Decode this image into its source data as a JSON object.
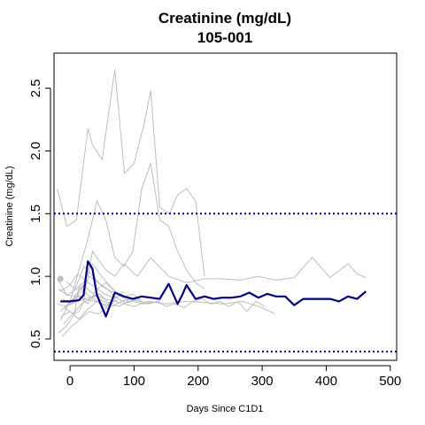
{
  "chart_data": {
    "type": "line",
    "title": "Creatinine (mg/dL)",
    "subtitle": "105-001",
    "xlabel": "Days Since C1D1",
    "ylabel": "Creatinine (mg/dL)",
    "xlim": [
      -25,
      510
    ],
    "ylim": [
      0.33,
      2.78
    ],
    "xticks": [
      0,
      100,
      200,
      300,
      400,
      500
    ],
    "yticks": [
      0.5,
      1.0,
      1.5,
      2.0,
      2.5
    ],
    "xtick_labels": [
      "0",
      "100",
      "200",
      "300",
      "400",
      "500"
    ],
    "ytick_labels": [
      "0.5",
      "1.0",
      "1.5",
      "2.0",
      "2.5"
    ],
    "reference_lines": [
      1.5,
      0.4
    ],
    "reference_line_color": "#00008b",
    "highlight_color": "#000080",
    "background_color": "#bebebe",
    "grid": false,
    "highlight_series": {
      "x": [
        -15,
        0,
        14,
        21,
        28,
        35,
        42,
        56,
        70,
        84,
        98,
        112,
        126,
        140,
        154,
        168,
        175,
        182,
        196,
        210,
        224,
        238,
        252,
        266,
        280,
        294,
        308,
        322,
        336,
        350,
        364,
        378,
        392,
        406,
        420,
        434,
        448,
        462
      ],
      "y": [
        0.8,
        0.8,
        0.81,
        0.85,
        1.12,
        1.06,
        0.85,
        0.68,
        0.87,
        0.84,
        0.82,
        0.84,
        0.83,
        0.82,
        0.94,
        0.78,
        0.85,
        0.93,
        0.82,
        0.84,
        0.82,
        0.83,
        0.83,
        0.84,
        0.87,
        0.83,
        0.86,
        0.84,
        0.84,
        0.77,
        0.82,
        0.82,
        0.82,
        0.82,
        0.8,
        0.84,
        0.82,
        0.88
      ]
    },
    "background_series": [
      {
        "x": [
          -20,
          -5,
          10,
          28,
          35,
          50,
          70,
          85,
          100,
          115,
          126,
          140,
          155,
          168,
          182,
          196,
          210
        ],
        "y": [
          1.7,
          1.4,
          1.45,
          2.18,
          2.05,
          1.93,
          2.65,
          1.82,
          1.9,
          2.2,
          2.48,
          1.55,
          1.5,
          1.65,
          1.7,
          1.6,
          1.0
        ]
      },
      {
        "x": [
          -15,
          0,
          14,
          28,
          42,
          56,
          70,
          84,
          98,
          112,
          126,
          140,
          154,
          168,
          182,
          196,
          210
        ],
        "y": [
          0.65,
          0.8,
          1.05,
          1.3,
          1.6,
          1.45,
          1.15,
          1.08,
          1.2,
          1.7,
          1.9,
          1.45,
          1.4,
          1.2,
          1.05,
          0.95,
          0.9
        ]
      },
      {
        "x": [
          -10,
          5,
          14,
          21,
          35,
          56,
          70,
          84,
          105,
          126,
          154,
          182,
          210,
          238,
          266,
          294,
          322,
          350,
          378,
          406,
          434,
          448,
          462
        ],
        "y": [
          0.75,
          0.7,
          0.72,
          0.8,
          1.2,
          1.05,
          1.0,
          1.1,
          1.0,
          1.15,
          1.0,
          0.95,
          0.98,
          0.98,
          0.97,
          1.0,
          0.97,
          0.99,
          1.15,
          0.99,
          1.1,
          1.02,
          0.99
        ]
      },
      {
        "x": [
          -20,
          -5,
          10,
          21,
          35,
          49,
          63,
          77,
          91,
          105,
          119,
          140
        ],
        "y": [
          0.98,
          0.85,
          0.9,
          0.95,
          1.1,
          1.0,
          0.92,
          0.85,
          0.8,
          0.82,
          0.78,
          0.8
        ]
      },
      {
        "x": [
          -18,
          -6,
          7,
          14,
          28,
          42,
          56,
          70,
          84
        ],
        "y": [
          0.55,
          0.6,
          0.7,
          0.92,
          0.85,
          0.8,
          0.75,
          0.82,
          0.88
        ]
      },
      {
        "x": [
          -15,
          0,
          14,
          28,
          42,
          56,
          70,
          84,
          98,
          112
        ],
        "y": [
          0.72,
          0.8,
          0.85,
          0.78,
          0.9,
          0.95,
          0.88,
          0.84,
          0.86,
          0.8
        ]
      },
      {
        "x": [
          -12,
          2,
          16,
          30,
          44,
          58,
          72,
          86,
          100,
          114,
          128
        ],
        "y": [
          0.82,
          0.78,
          0.88,
          1.0,
          0.95,
          0.9,
          0.83,
          0.79,
          0.8,
          0.78,
          0.8
        ]
      },
      {
        "x": [
          -10,
          4,
          18,
          32,
          46,
          60,
          74
        ],
        "y": [
          0.62,
          0.7,
          0.78,
          0.82,
          0.86,
          0.79,
          0.81
        ]
      },
      {
        "x": [
          -20,
          -5,
          10,
          25,
          40,
          55,
          70,
          85,
          100,
          120,
          150,
          180,
          210,
          240,
          270,
          300,
          320
        ],
        "y": [
          0.78,
          0.76,
          0.8,
          0.82,
          0.85,
          0.82,
          0.8,
          0.78,
          0.76,
          0.8,
          0.78,
          0.8,
          0.79,
          0.78,
          0.8,
          0.75,
          0.7
        ]
      },
      {
        "x": [
          -16,
          -2,
          12,
          26,
          40,
          54,
          68,
          82,
          96
        ],
        "y": [
          0.88,
          0.92,
          1.02,
          0.96,
          0.91,
          0.86,
          0.83,
          0.85,
          0.82
        ]
      },
      {
        "x": [
          -14,
          0,
          14,
          28,
          42,
          56,
          70
        ],
        "y": [
          0.68,
          0.72,
          0.66,
          0.74,
          0.8,
          0.77,
          0.79
        ]
      },
      {
        "x": [
          -8,
          6,
          20,
          34,
          48,
          62,
          76,
          90
        ],
        "y": [
          0.74,
          0.83,
          0.93,
          0.87,
          0.81,
          0.78,
          0.76,
          0.8
        ]
      },
      {
        "x": [
          -18,
          -4,
          10,
          24,
          38,
          52,
          66,
          80,
          94,
          108,
          122,
          136,
          150,
          164,
          178,
          192,
          206,
          220,
          234,
          248,
          262,
          276,
          290,
          304
        ],
        "y": [
          0.9,
          0.85,
          0.84,
          0.82,
          0.8,
          0.78,
          0.76,
          0.8,
          0.82,
          0.8,
          0.78,
          0.8,
          0.76,
          0.78,
          0.75,
          0.8,
          0.82,
          0.78,
          0.8,
          0.76,
          0.8,
          0.72,
          0.8,
          0.76
        ]
      },
      {
        "x": [
          -12,
          2,
          16,
          30,
          44,
          58
        ],
        "y": [
          0.52,
          0.6,
          0.66,
          0.72,
          0.7,
          0.75
        ]
      },
      {
        "x": [
          -6,
          8,
          22,
          36,
          50,
          64,
          78
        ],
        "y": [
          0.96,
          0.9,
          1.08,
          1.0,
          0.92,
          0.88,
          0.86
        ]
      }
    ],
    "baseline_markers": [
      {
        "x": -15,
        "y": 0.98
      }
    ]
  }
}
